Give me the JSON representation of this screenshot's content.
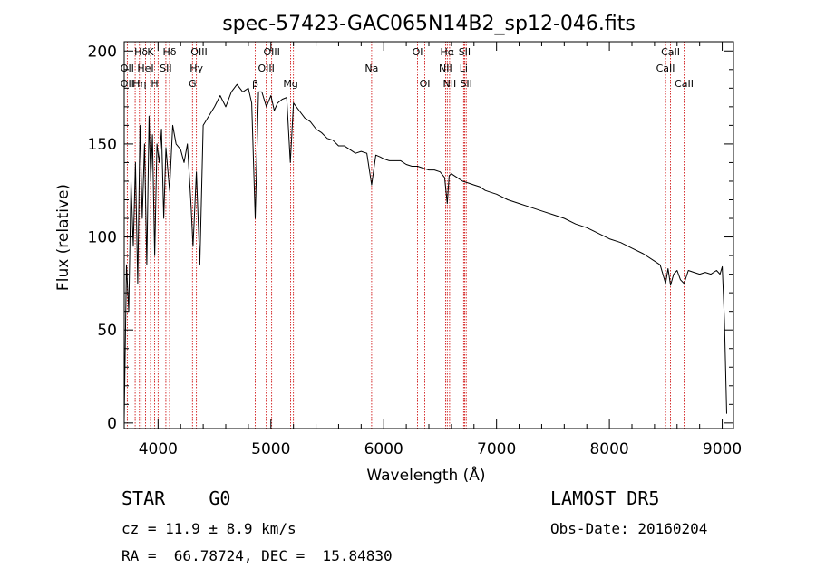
{
  "chart_data": {
    "type": "line",
    "title": "spec-57423-GAC065N14B2_sp12-046.fits",
    "xlabel": "Wavelength (Å)",
    "ylabel": "Flux (relative)",
    "xlim": [
      3700,
      9100
    ],
    "ylim": [
      -3,
      205
    ],
    "x_ticks": [
      4000,
      5000,
      6000,
      7000,
      8000,
      9000
    ],
    "y_ticks": [
      0,
      50,
      100,
      150,
      200
    ],
    "grid": false,
    "series": [
      {
        "x": [
          3700,
          3720,
          3740,
          3760,
          3780,
          3800,
          3820,
          3840,
          3860,
          3880,
          3900,
          3920,
          3935,
          3950,
          3970,
          3990,
          4010,
          4030,
          4050,
          4070,
          4102,
          4130,
          4160,
          4200,
          4230,
          4260,
          4290,
          4310,
          4340,
          4370,
          4400,
          4450,
          4500,
          4550,
          4600,
          4650,
          4700,
          4750,
          4800,
          4830,
          4861,
          4890,
          4920,
          4960,
          5000,
          5030,
          5060,
          5100,
          5140,
          5172,
          5200,
          5250,
          5300,
          5350,
          5400,
          5450,
          5500,
          5550,
          5600,
          5650,
          5700,
          5750,
          5800,
          5850,
          5893,
          5930,
          5970,
          6000,
          6050,
          6100,
          6150,
          6200,
          6250,
          6300,
          6350,
          6400,
          6450,
          6500,
          6540,
          6563,
          6580,
          6600,
          6650,
          6700,
          6750,
          6800,
          6850,
          6900,
          6950,
          7000,
          7100,
          7200,
          7300,
          7400,
          7500,
          7600,
          7700,
          7800,
          7900,
          8000,
          8100,
          8200,
          8300,
          8400,
          8450,
          8498,
          8520,
          8542,
          8570,
          8600,
          8630,
          8662,
          8700,
          8750,
          8800,
          8850,
          8900,
          8950,
          8980,
          9000,
          9020,
          9040
        ],
        "y": [
          2,
          85,
          60,
          130,
          95,
          140,
          75,
          160,
          110,
          150,
          85,
          165,
          130,
          155,
          90,
          150,
          140,
          158,
          110,
          148,
          125,
          160,
          150,
          147,
          140,
          150,
          120,
          95,
          135,
          85,
          160,
          165,
          170,
          176,
          170,
          178,
          182,
          178,
          180,
          172,
          110,
          178,
          178,
          170,
          176,
          168,
          172,
          174,
          175,
          140,
          172,
          168,
          164,
          162,
          158,
          156,
          153,
          152,
          149,
          149,
          147,
          145,
          146,
          145,
          128,
          144,
          143,
          142,
          141,
          141,
          141,
          139,
          138,
          138,
          137,
          136,
          136,
          135,
          132,
          118,
          133,
          134,
          132,
          130,
          129,
          128,
          127,
          125,
          124,
          123,
          120,
          118,
          116,
          114,
          112,
          110,
          107,
          105,
          102,
          99,
          97,
          94,
          91,
          87,
          85,
          75,
          83,
          74,
          80,
          82,
          77,
          75,
          82,
          81,
          80,
          81,
          80,
          82,
          80,
          84,
          55,
          5
        ]
      }
    ],
    "line_color": "#000000",
    "annotation_color": "#cc0000",
    "spectral_lines": [
      {
        "label": "Hδ",
        "wavelength": 3850,
        "row": 0
      },
      {
        "label": "OII",
        "wavelength": 3727,
        "row": 1
      },
      {
        "label": "OII",
        "wavelength": 3727,
        "row": 2
      },
      {
        "label": "K",
        "wavelength": 3933,
        "row": 0
      },
      {
        "label": "HeI",
        "wavelength": 3889,
        "row": 1
      },
      {
        "label": "Hη",
        "wavelength": 3835,
        "row": 2
      },
      {
        "label": "Hδ",
        "wavelength": 4102,
        "row": 0
      },
      {
        "label": "SII",
        "wavelength": 4069,
        "row": 1
      },
      {
        "label": "H",
        "wavelength": 3969,
        "row": 2
      },
      {
        "label": "OIII",
        "wavelength": 4363,
        "row": 0
      },
      {
        "label": "Hγ",
        "wavelength": 4340,
        "row": 1
      },
      {
        "label": "G",
        "wavelength": 4305,
        "row": 2
      },
      {
        "label": "OIII",
        "wavelength": 5007,
        "row": 0
      },
      {
        "label": "OIII",
        "wavelength": 4959,
        "row": 1
      },
      {
        "label": "β",
        "wavelength": 4861,
        "row": 2
      },
      {
        "label": "Mg",
        "wavelength": 5175,
        "row": 2
      },
      {
        "label": "Na",
        "wavelength": 5893,
        "row": 1
      },
      {
        "label": "OI",
        "wavelength": 6300,
        "row": 0
      },
      {
        "label": "OI",
        "wavelength": 6364,
        "row": 2
      },
      {
        "label": "Hα",
        "wavelength": 6563,
        "row": 0
      },
      {
        "label": "SII",
        "wavelength": 6717,
        "row": 0
      },
      {
        "label": "NII",
        "wavelength": 6548,
        "row": 1
      },
      {
        "label": "Li",
        "wavelength": 6708,
        "row": 1
      },
      {
        "label": "NII",
        "wavelength": 6584,
        "row": 2
      },
      {
        "label": "SII",
        "wavelength": 6731,
        "row": 2
      },
      {
        "label": "CaII",
        "wavelength": 8542,
        "row": 0
      },
      {
        "label": "CaII",
        "wavelength": 8498,
        "row": 1
      },
      {
        "label": "CaII",
        "wavelength": 8662,
        "row": 2
      }
    ],
    "extra_marker_lines": [
      3760,
      3797,
      3889,
      4000,
      5200,
      6731
    ]
  },
  "info": {
    "object_class": "STAR    G0",
    "survey": "LAMOST DR5",
    "redshift": "cz = 11.9 ± 8.9 km/s",
    "obs_date": "Obs-Date: 20160204",
    "coords": "RA =  66.78724, DEC =  15.84830"
  }
}
